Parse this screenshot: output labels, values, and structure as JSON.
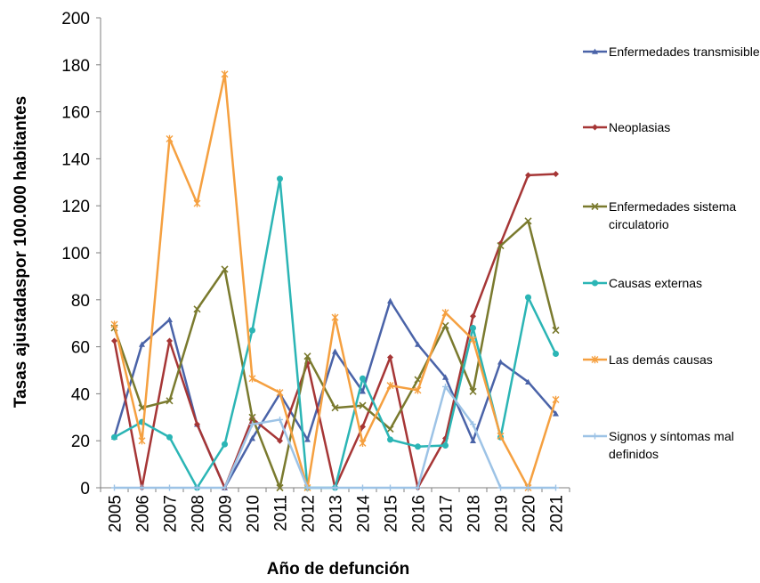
{
  "chart_data": {
    "type": "line",
    "title": "",
    "xlabel": "Año de defunción",
    "ylabel": "Tasas ajustadaspor 100.000 habitantes",
    "ylim": [
      0,
      200
    ],
    "yticks": [
      0,
      20,
      40,
      60,
      80,
      100,
      120,
      140,
      160,
      180,
      200
    ],
    "grid": false,
    "legend_position": "right",
    "categories": [
      "2005",
      "2006",
      "2007",
      "2008",
      "2009",
      "2010",
      "2011",
      "2012",
      "2013",
      "2014",
      "2015",
      "2016",
      "2017",
      "2018",
      "2019",
      "2020",
      "2021"
    ],
    "series": [
      {
        "name": "Enfermedades transmisibles",
        "label_lines": [
          "Enfermedades transmisibles"
        ],
        "color": "#4A63A8",
        "marker": "triangle",
        "values": [
          21.5,
          61,
          71.5,
          27,
          0,
          21,
          40,
          20.5,
          58,
          41,
          79.5,
          61,
          47,
          20,
          53.5,
          45,
          31.5
        ]
      },
      {
        "name": "Neoplasias",
        "label_lines": [
          "Neoplasias"
        ],
        "color": "#A63636",
        "marker": "diamond",
        "values": [
          62.5,
          0,
          62.5,
          27,
          0,
          29.5,
          20,
          53,
          0,
          26,
          55.5,
          0,
          21,
          73,
          104,
          133,
          133.5
        ]
      },
      {
        "name": "Enfermedades sistema circulatorio",
        "label_lines": [
          "Enfermedades sistema",
          "circulatorio"
        ],
        "color": "#7A7A2E",
        "marker": "x",
        "values": [
          68,
          34,
          37,
          76,
          93,
          30,
          0,
          56,
          34,
          35,
          25,
          46,
          69,
          41,
          103,
          113.5,
          67
        ]
      },
      {
        "name": "Causas externas",
        "label_lines": [
          "Causas externas"
        ],
        "color": "#2BB5B5",
        "marker": "circle",
        "values": [
          21.5,
          28,
          21.5,
          0,
          18.5,
          67,
          131.5,
          0,
          0,
          46.5,
          20.5,
          17.5,
          18,
          68,
          21.5,
          81,
          57
        ]
      },
      {
        "name": "Las demás causas",
        "label_lines": [
          "Las demás causas"
        ],
        "color": "#F5A040",
        "marker": "star",
        "values": [
          69.5,
          20,
          148.5,
          121,
          176,
          46.5,
          40.5,
          0,
          72.5,
          19,
          43.5,
          41.5,
          74.5,
          63,
          22,
          0,
          37.5
        ]
      },
      {
        "name": "Signos y síntomas mal definidos",
        "label_lines": [
          "Signos y síntomas mal",
          "definidos"
        ],
        "color": "#9DC3E6",
        "marker": "plus",
        "values": [
          0,
          0,
          0,
          0,
          0,
          27,
          29,
          0,
          0,
          0,
          0,
          0,
          43,
          27,
          0,
          0,
          0
        ]
      }
    ]
  }
}
